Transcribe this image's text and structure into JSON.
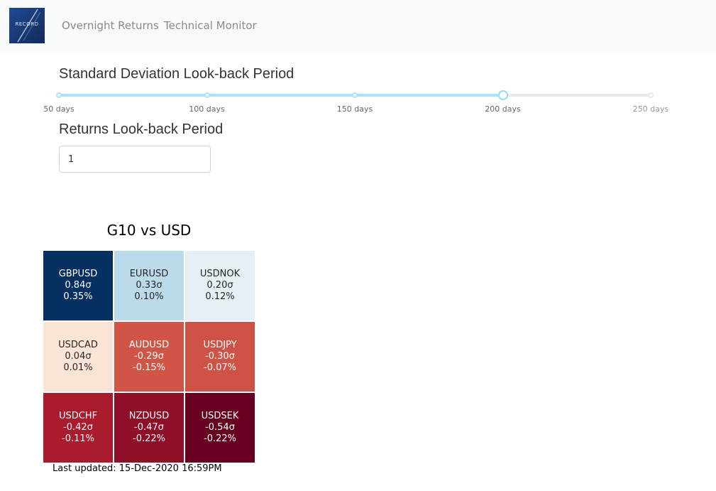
{
  "navbar": {
    "logo_text": "RECORD",
    "links": [
      "Overnight Returns",
      "Technical Monitor"
    ]
  },
  "std_slider": {
    "title": "Standard Deviation Look-back Period",
    "marks": [
      "50 days",
      "100 days",
      "150 days",
      "200 days",
      "250 days"
    ],
    "selected": "200 days",
    "selected_fraction": 0.75
  },
  "returns_lookback": {
    "title": "Returns Look-back Period",
    "value": "1"
  },
  "heatmap": {
    "title": "G10 vs USD",
    "cells": [
      {
        "pair": "GBPUSD",
        "sigma": "0.84σ",
        "ret": "0.35%",
        "bg": "#053061",
        "fg": "#ffffff"
      },
      {
        "pair": "EURUSD",
        "sigma": "0.33σ",
        "ret": "0.10%",
        "bg": "#bcdbea",
        "fg": "#262626"
      },
      {
        "pair": "USDNOK",
        "sigma": "0.20σ",
        "ret": "0.12%",
        "bg": "#e6eff3",
        "fg": "#262626"
      },
      {
        "pair": "USDCAD",
        "sigma": "0.04σ",
        "ret": "0.01%",
        "bg": "#fbe4d6",
        "fg": "#262626"
      },
      {
        "pair": "AUDUSD",
        "sigma": "-0.29σ",
        "ret": "-0.15%",
        "bg": "#d05547",
        "fg": "#ffffff"
      },
      {
        "pair": "USDJPY",
        "sigma": "-0.30σ",
        "ret": "-0.07%",
        "bg": "#cf5246",
        "fg": "#ffffff"
      },
      {
        "pair": "USDCHF",
        "sigma": "-0.42σ",
        "ret": "-0.11%",
        "bg": "#a91b2d",
        "fg": "#ffffff"
      },
      {
        "pair": "NZDUSD",
        "sigma": "-0.47σ",
        "ret": "-0.22%",
        "bg": "#8f0e28",
        "fg": "#ffffff"
      },
      {
        "pair": "USDSEK",
        "sigma": "-0.54σ",
        "ret": "-0.22%",
        "bg": "#670020",
        "fg": "#ffffff"
      }
    ]
  },
  "footer": {
    "last_updated": "Last updated: 15-Dec-2020 16:59PM"
  },
  "colors": {
    "navbar_bg": "#f8f9fa",
    "slider_track": "#abe2fb",
    "logo_bg": "#1b3a7a"
  }
}
